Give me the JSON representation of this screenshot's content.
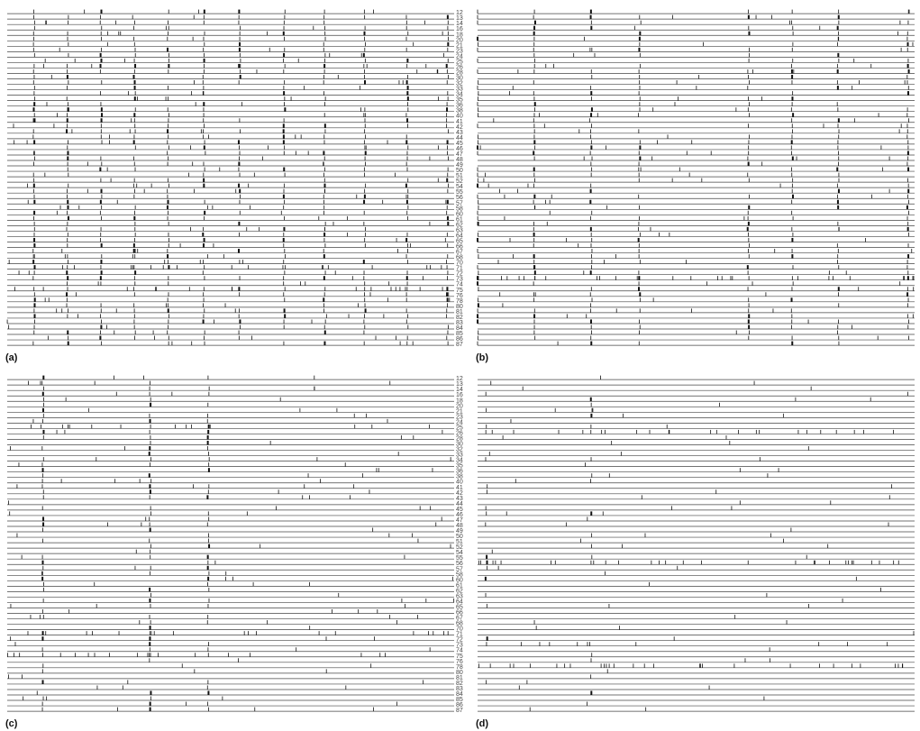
{
  "figure": {
    "panels": [
      {
        "label": "(a)",
        "has_row_labels": true
      },
      {
        "label": "(b)",
        "has_row_labels": false
      },
      {
        "label": "(c)",
        "has_row_labels": true
      },
      {
        "label": "(d)",
        "has_row_labels": false
      }
    ],
    "row_labels": [
      "12",
      "13",
      "14",
      "16",
      "18",
      "20",
      "21",
      "23",
      "24",
      "25",
      "26",
      "28",
      "30",
      "32",
      "33",
      "34",
      "35",
      "36",
      "38",
      "40",
      "41",
      "42",
      "43",
      "44",
      "45",
      "46",
      "47",
      "48",
      "49",
      "50",
      "51",
      "52",
      "54",
      "55",
      "56",
      "57",
      "58",
      "60",
      "61",
      "62",
      "63",
      "64",
      "65",
      "66",
      "67",
      "68",
      "70",
      "71",
      "72",
      "73",
      "74",
      "75",
      "76",
      "78",
      "80",
      "81",
      "82",
      "83",
      "84",
      "85",
      "86",
      "87"
    ],
    "color": "#111111",
    "line_color": "#444444"
  },
  "chart_data": {
    "type": "raster",
    "rows": 62
  }
}
